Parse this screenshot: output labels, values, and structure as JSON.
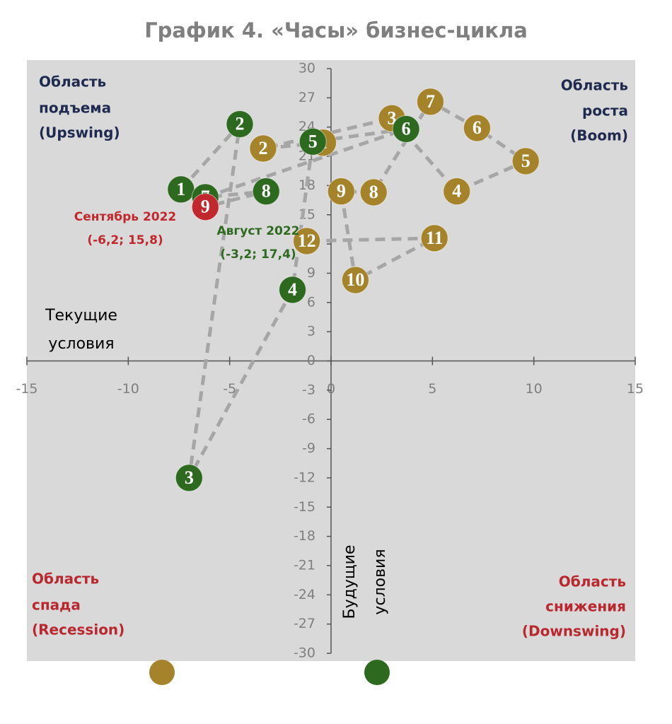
{
  "chart_data": {
    "type": "scatter",
    "title": "График 4. «Часы» бизнес-цикла",
    "x_label": [
      "Текущие",
      "условия"
    ],
    "y_label": [
      "Будущие",
      "условия"
    ],
    "quadrant_labels": {
      "upswing": [
        "Область",
        "подъема",
        "(Upswing)"
      ],
      "boom": [
        "Область",
        "роста",
        "(Boom)"
      ],
      "recession": [
        "Область",
        "спада",
        "(Recession)"
      ],
      "downswing": [
        "Область",
        "снижения",
        "(Downswing)"
      ]
    },
    "annotations": {
      "september": [
        "Сентябрь 2022",
        "(-6,2; 15,8)"
      ],
      "august": [
        "Август 2022",
        "(-3,2; 17,4)"
      ]
    },
    "xlim": [
      -15,
      15
    ],
    "ylim": [
      -30,
      30
    ],
    "xticks": [
      -15,
      -10,
      -5,
      0,
      5,
      10,
      15
    ],
    "yticks": [
      30,
      27,
      24,
      21,
      18,
      15,
      12,
      9,
      6,
      3,
      0,
      -3,
      -6,
      -9,
      -12,
      -15,
      -18,
      -21,
      -24,
      -27,
      -30
    ],
    "line_color": "#a6a6a6",
    "series": [
      {
        "color": "#a5832a",
        "labels": [
          "1",
          "2",
          "3",
          "4",
          "5",
          "6",
          "7",
          "8",
          "9",
          "10",
          "11",
          "12"
        ],
        "x": [
          -0.4,
          -3.35,
          3.0,
          6.2,
          9.6,
          7.2,
          4.9,
          2.1,
          0.5,
          1.2,
          5.1,
          -1.2
        ],
        "values": [
          22.4,
          21.8,
          24.9,
          17.4,
          20.5,
          23.9,
          26.6,
          17.3,
          17.4,
          8.3,
          12.6,
          12.3
        ]
      },
      {
        "color": "#2d6a1f",
        "point_colors": [
          "#2d6a1f",
          "#2d6a1f",
          "#2d6a1f",
          "#2d6a1f",
          "#2d6a1f",
          "#2d6a1f",
          "#2d6a1f",
          "#2d6a1f",
          "#c0282d"
        ],
        "labels": [
          "1",
          "2",
          "3",
          "4",
          "5",
          "6",
          "7",
          "8",
          "9"
        ],
        "x": [
          -7.4,
          -4.5,
          -7.0,
          -1.9,
          -0.9,
          3.7,
          -6.2,
          -3.2,
          -6.2
        ],
        "values": [
          17.6,
          24.3,
          -12.0,
          7.3,
          22.5,
          23.8,
          16.8,
          17.4,
          15.8
        ]
      }
    ]
  }
}
